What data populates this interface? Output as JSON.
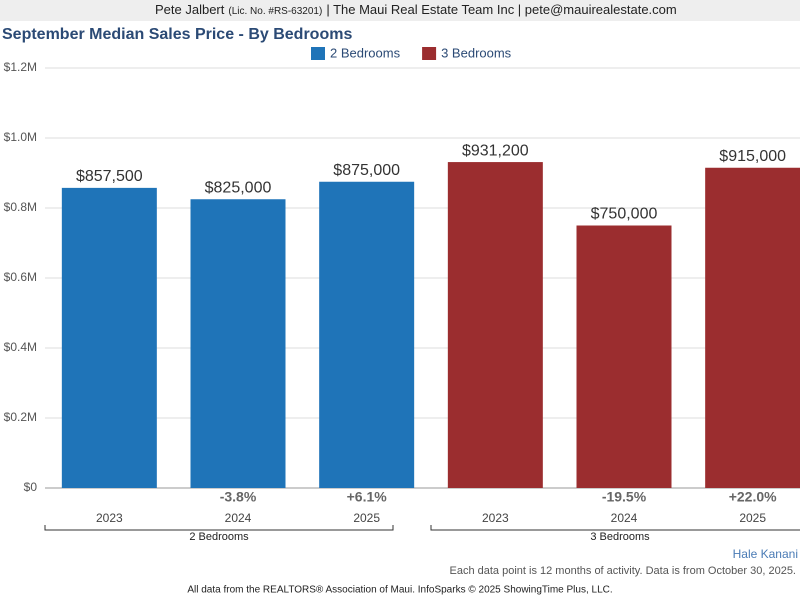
{
  "header": {
    "name": "Pete Jalbert",
    "license": "(Lic. No. #RS-63201)",
    "rest": "| The Maui Real Estate Team Inc | pete@mauirealestate.com"
  },
  "chart_data": {
    "type": "bar",
    "title": "September Median Sales Price - By Bedrooms",
    "categories": [
      "2023",
      "2024",
      "2025"
    ],
    "series": [
      {
        "name": "2 Bedrooms",
        "color": "#1f74b8",
        "values": [
          857500,
          825000,
          875000
        ],
        "value_labels": [
          "$857,500",
          "$825,000",
          "$875,000"
        ],
        "change_labels": [
          null,
          "-3.8%",
          "+6.1%"
        ]
      },
      {
        "name": "3 Bedrooms",
        "color": "#9b2d2f",
        "values": [
          931200,
          750000,
          915000
        ],
        "value_labels": [
          "$931,200",
          "$750,000",
          "$915,000"
        ],
        "change_labels": [
          null,
          "-19.5%",
          "+22.0%"
        ]
      }
    ],
    "ylim": [
      0,
      1200000
    ],
    "yticks": [
      {
        "value": 0,
        "label": "$0"
      },
      {
        "value": 200000,
        "label": "$0.2M"
      },
      {
        "value": 400000,
        "label": "$0.4M"
      },
      {
        "value": 600000,
        "label": "$0.6M"
      },
      {
        "value": 800000,
        "label": "$0.8M"
      },
      {
        "value": 1000000,
        "label": "$1.0M"
      },
      {
        "value": 1200000,
        "label": "$1.2M"
      }
    ],
    "grid": true
  },
  "footer": {
    "brand": "Hale Kanani",
    "note": "Each data point is 12 months of activity. Data is from October 30, 2025.",
    "source": "All data from the REALTORS® Association of Maui. InfoSparks © 2025 ShowingTime Plus, LLC."
  }
}
